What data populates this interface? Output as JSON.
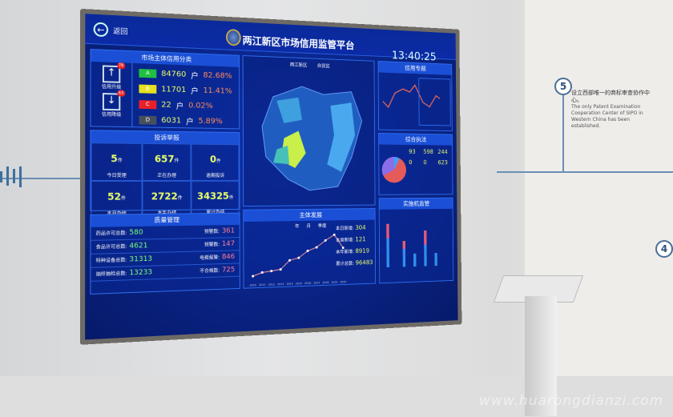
{
  "screen": {
    "back_label": "返回",
    "title": "两江新区市场信用监管平台",
    "clock": "13:40:25",
    "credit": {
      "title": "市场主体信用分类",
      "upgrade_label": "信用升级",
      "upgrade_count": "78",
      "downgrade_label": "信用降级",
      "downgrade_count": "63",
      "rows": [
        {
          "grade": "A",
          "count": "84760",
          "unit": "户",
          "pct": "82.68%",
          "color": "#20c040"
        },
        {
          "grade": "B",
          "count": "11701",
          "unit": "户",
          "pct": "11.41%",
          "color": "#e6e020"
        },
        {
          "grade": "C",
          "count": "22",
          "unit": "户",
          "pct": "0.02%",
          "color": "#e8202a"
        },
        {
          "grade": "D",
          "count": "6031",
          "unit": "户",
          "pct": "5.89%",
          "color": "#46505e"
        }
      ]
    },
    "complaints": {
      "title": "投诉举报",
      "items": [
        {
          "value": "5",
          "unit": "件",
          "label": "今日受理"
        },
        {
          "value": "657",
          "unit": "件",
          "label": "正在办理"
        },
        {
          "value": "0",
          "unit": "件",
          "label": "逾期投诉"
        },
        {
          "value": "52",
          "unit": "件",
          "label": "本月办结"
        },
        {
          "value": "2722",
          "unit": "件",
          "label": "本年办结"
        },
        {
          "value": "34325",
          "unit": "件",
          "label": "累计办结"
        }
      ]
    },
    "quality": {
      "title": "质量管理",
      "rows": [
        {
          "l": "药品许可总数:",
          "v": "580",
          "l2": "预警数:",
          "v2": "361"
        },
        {
          "l": "食品许可总数:",
          "v": "4621",
          "l2": "预警数:",
          "v2": "147"
        },
        {
          "l": "特种设备总数:",
          "v": "31313",
          "l2": "电梯报警:",
          "v2": "846"
        },
        {
          "l": "抽样抽检总数:",
          "v": "13233",
          "l2": "不合格数:",
          "v2": "725"
        }
      ]
    },
    "map": {
      "legend": [
        "两江新区",
        "自贸区"
      ]
    },
    "growth": {
      "title": "主体发展",
      "legend": [
        "年",
        "月",
        "季度"
      ],
      "years": [
        "2010",
        "2011",
        "2012",
        "2013",
        "2014",
        "2015",
        "2016",
        "2017",
        "2018",
        "2019",
        "2020"
      ],
      "values": [
        1000,
        2500,
        3000,
        3600,
        7500,
        8500,
        11500,
        13000,
        16000,
        18500,
        12500
      ],
      "stats": [
        {
          "label": "本日新增:",
          "value": "304"
        },
        {
          "label": "本周新增:",
          "value": "121"
        },
        {
          "label": "本年新增:",
          "value": "8919"
        },
        {
          "label": "累计总数:",
          "value": "96483"
        }
      ]
    },
    "right1": {
      "title": "信用专题"
    },
    "right2": {
      "title": "综合执法",
      "items": [
        "93",
        "598",
        "244",
        "0",
        "0",
        "623"
      ]
    },
    "right3": {
      "title": "实施机监管"
    }
  },
  "wall": {
    "step": "5",
    "step2": "4",
    "cn": "设立西部唯一的商标审查协作中心。",
    "en": "The only Patent Examination Cooperation Center of SIPO in Western China has been established."
  },
  "watermark": "www.huarongdianzi.com"
}
